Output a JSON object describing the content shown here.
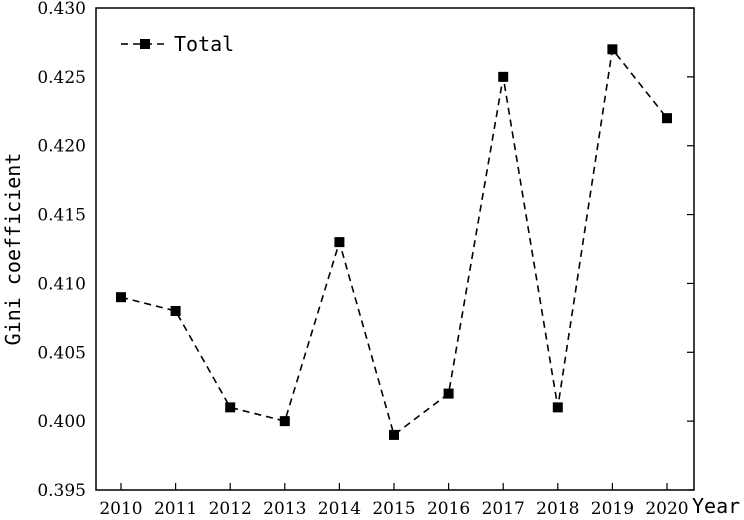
{
  "chart_data": {
    "type": "line",
    "title": "",
    "xlabel": "Year",
    "ylabel": "Gini coefficient",
    "x": [
      "2010",
      "2011",
      "2012",
      "2013",
      "2014",
      "2015",
      "2016",
      "2017",
      "2018",
      "2019",
      "2020"
    ],
    "series": [
      {
        "name": "Total",
        "values": [
          0.409,
          0.408,
          0.401,
          0.4,
          0.413,
          0.399,
          0.402,
          0.425,
          0.401,
          0.427,
          0.422
        ],
        "line_style": "dashed",
        "marker": "square",
        "color": "#000000"
      }
    ],
    "ylim": [
      0.395,
      0.43
    ],
    "y_ticks": [
      "0.395",
      "0.400",
      "0.405",
      "0.410",
      "0.415",
      "0.420",
      "0.425",
      "0.430"
    ],
    "grid": false,
    "legend_position": "top-left"
  }
}
